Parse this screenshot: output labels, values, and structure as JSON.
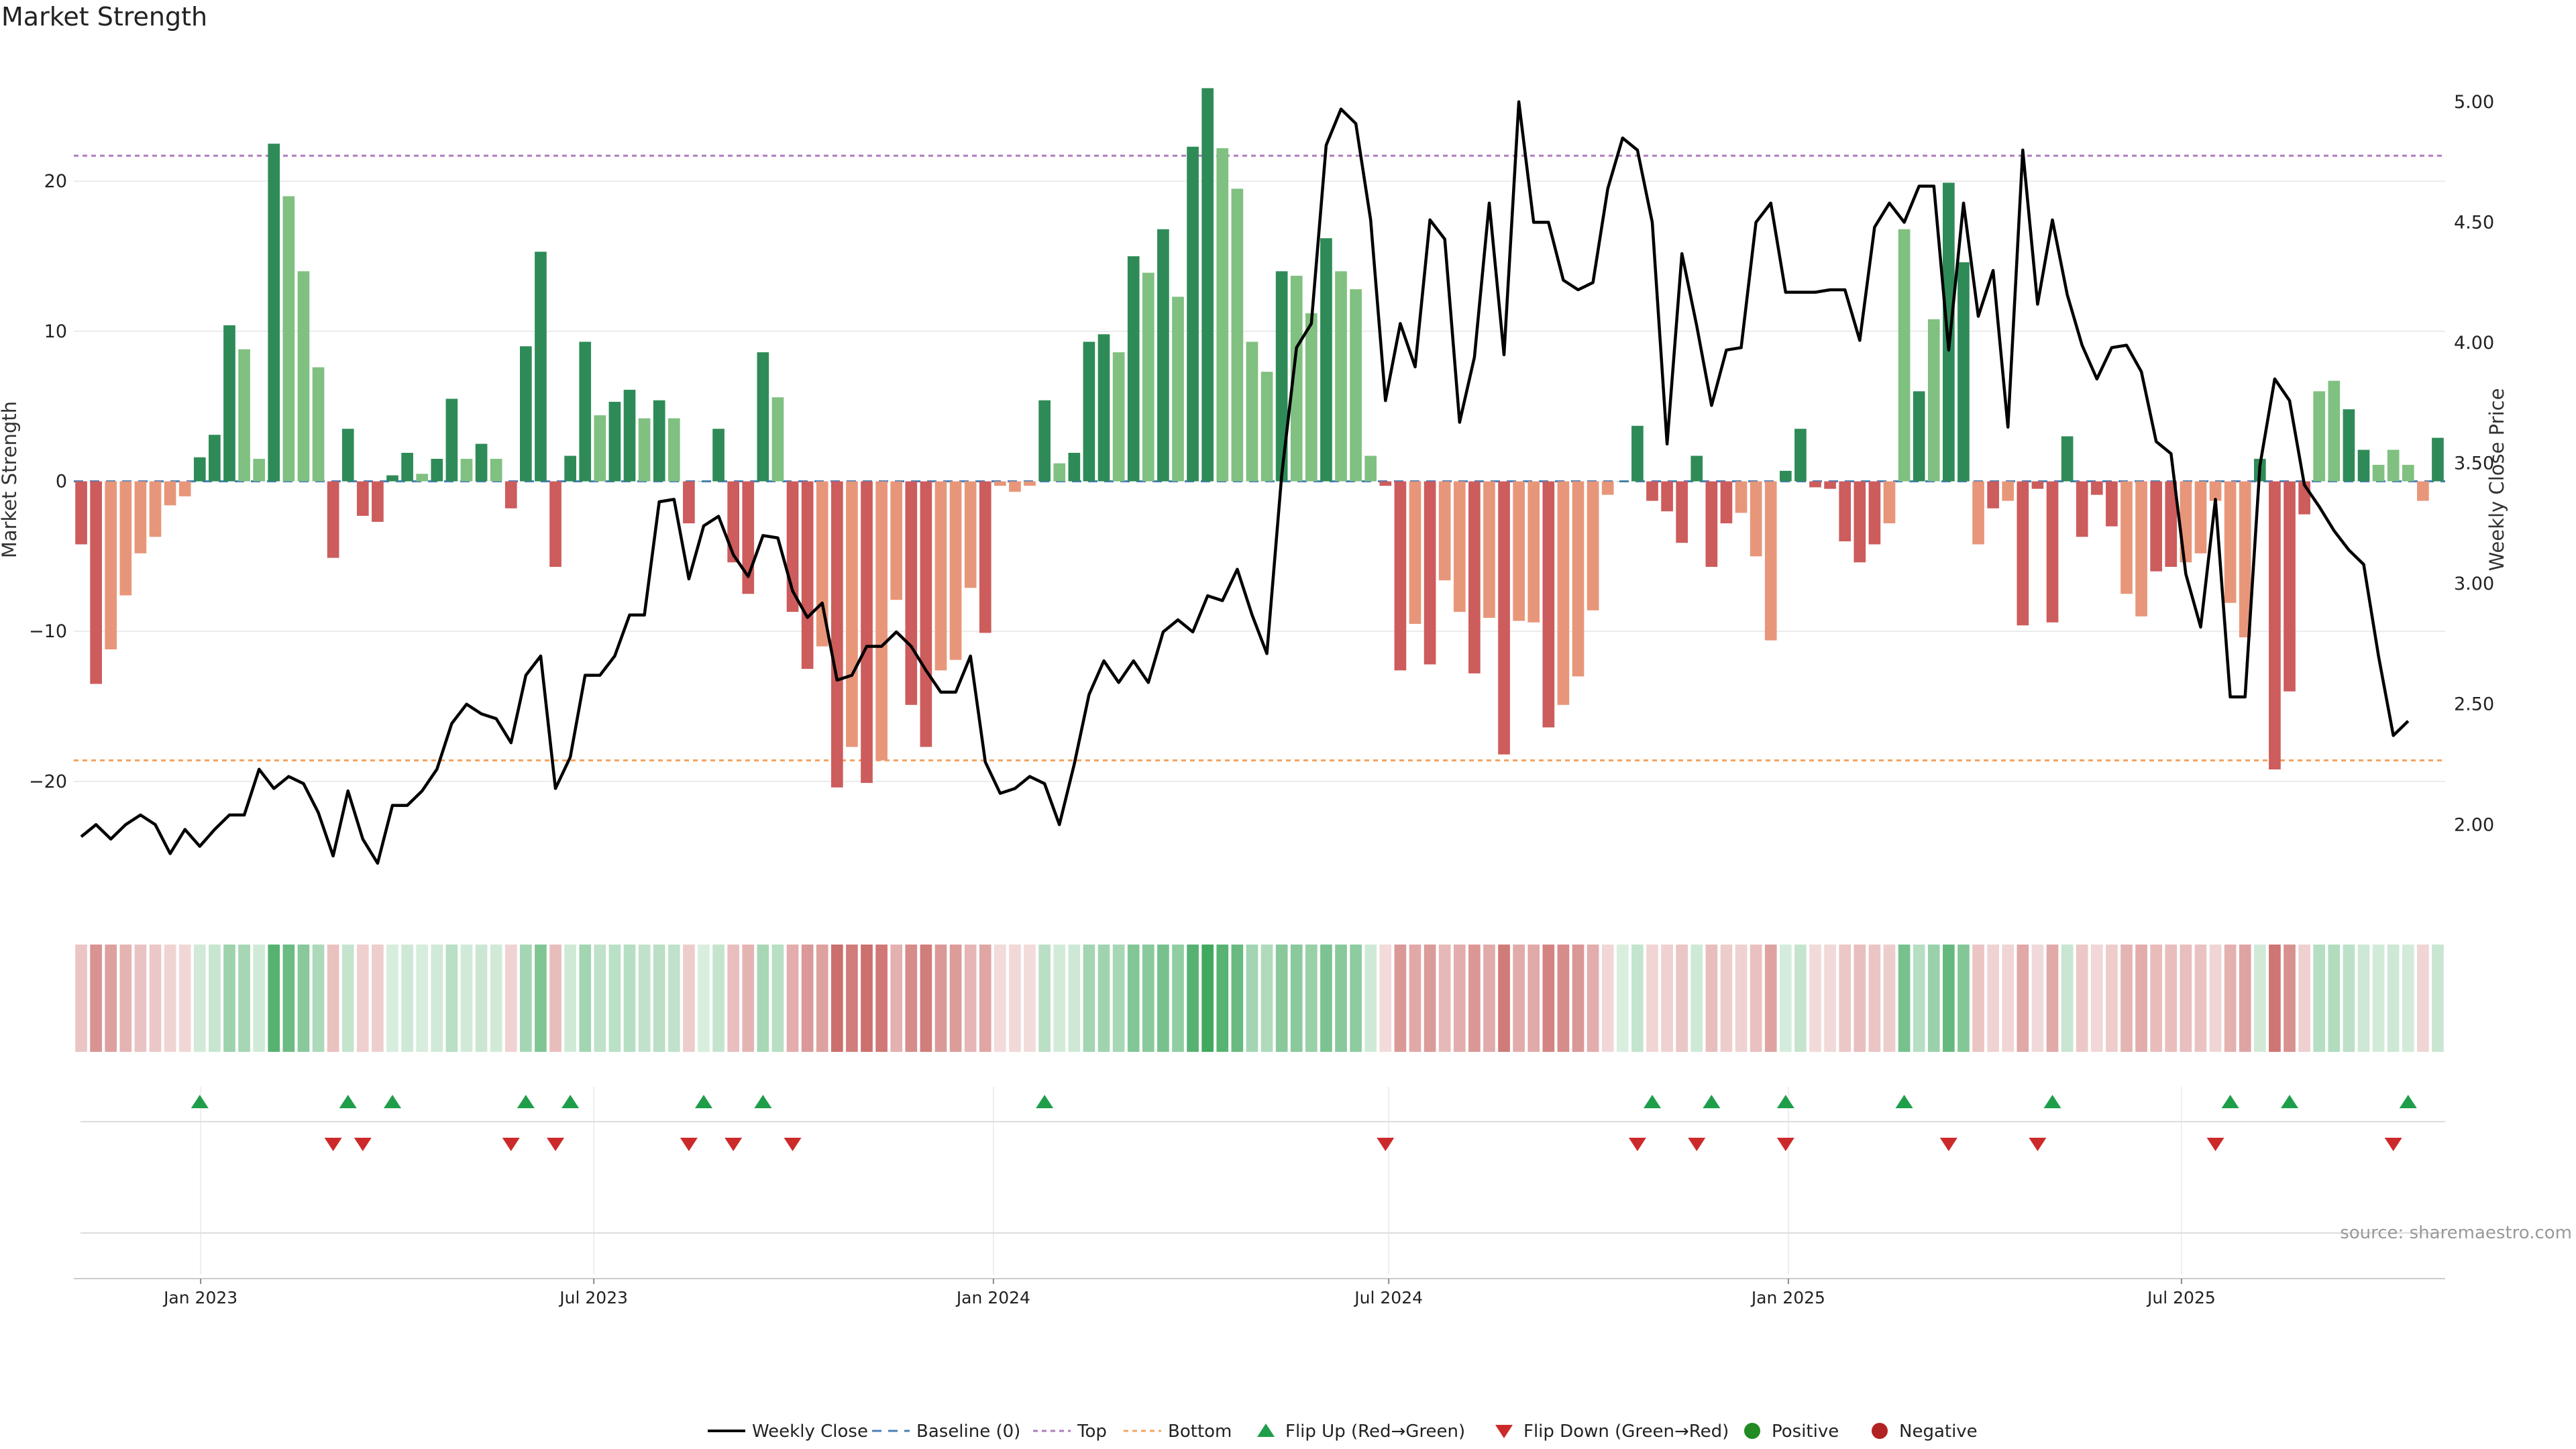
{
  "chart_data": {
    "type": "bar",
    "title": "Market Strength",
    "source": "source: sharemaestro.com",
    "y_left": {
      "label": "Market Strength",
      "lim": [
        -28.5,
        28.5
      ],
      "ticks": [
        -20,
        -10,
        0,
        10,
        20
      ],
      "tick_labels": [
        "−20",
        "−10",
        "0",
        "10",
        "20"
      ]
    },
    "y_right": {
      "label": "Weekly Close Price",
      "lim": [
        1.65,
        5.2
      ],
      "ticks": [
        2.0,
        2.5,
        3.0,
        3.5,
        4.0,
        4.5,
        5.0
      ],
      "tick_labels": [
        "2.00",
        "2.50",
        "3.00",
        "3.50",
        "4.00",
        "4.50",
        "5.00"
      ]
    },
    "x_axis": {
      "start": "2022-11-07",
      "end": "2025-10-27",
      "ticks": [
        "2023-01-01",
        "2023-07-01",
        "2024-01-01",
        "2024-07-01",
        "2025-01-01",
        "2025-07-01"
      ],
      "tick_labels": [
        "Jan 2023",
        "Jul 2023",
        "Jan 2024",
        "Jul 2024",
        "Jan 2025",
        "Jul 2025"
      ]
    },
    "reference_lines": {
      "top": 21.7,
      "bottom": -18.6,
      "baseline": 0
    },
    "colors": {
      "pos_strong": "#2e8b57",
      "pos_light": "#80c080",
      "neg_strong": "#cd5c5c",
      "neg_light": "#e8967a",
      "line": "#000000",
      "top": "#b07ac0",
      "bottom": "#f4a460",
      "baseline": "#4a7fb5",
      "flip_up": "#1f9e4a",
      "flip_down": "#cc2a2a",
      "positive": "#228b22",
      "negative": "#b22222"
    },
    "strength": [
      -4.2,
      -13.5,
      -11.2,
      -7.6,
      -4.8,
      -3.7,
      -1.6,
      -1.0,
      1.6,
      3.1,
      10.4,
      8.8,
      1.5,
      22.5,
      19.0,
      14.0,
      7.6,
      -5.1,
      3.5,
      -2.3,
      -2.7,
      0.4,
      1.9,
      0.5,
      1.5,
      5.5,
      1.5,
      2.5,
      1.5,
      -1.8,
      9.0,
      15.3,
      -5.7,
      1.7,
      9.3,
      4.4,
      5.3,
      6.1,
      4.2,
      5.4,
      4.2,
      -2.8,
      0.0,
      3.5,
      -5.4,
      -7.5,
      8.6,
      5.6,
      -8.7,
      -12.5,
      -11.0,
      -20.4,
      -17.7,
      -20.1,
      -18.6,
      -7.9,
      -14.9,
      -17.7,
      -12.6,
      -11.9,
      -7.1,
      -10.1,
      -0.3,
      -0.7,
      -0.3,
      5.4,
      1.2,
      1.9,
      9.3,
      9.8,
      8.6,
      15.0,
      13.9,
      16.8,
      12.3,
      22.3,
      26.2,
      22.2,
      19.5,
      9.3,
      7.3,
      14.0,
      13.7,
      11.2,
      16.2,
      14.0,
      12.8,
      1.7,
      -0.3,
      -12.6,
      -9.5,
      -12.2,
      -6.6,
      -8.7,
      -12.8,
      -9.1,
      -18.2,
      -9.3,
      -9.4,
      -16.4,
      -14.9,
      -13.0,
      -8.6,
      -0.9,
      0.0,
      3.7,
      -1.3,
      -2.0,
      -4.1,
      1.7,
      -5.7,
      -2.8,
      -2.1,
      -5.0,
      -10.6,
      0.7,
      3.5,
      -0.4,
      -0.5,
      -4.0,
      -5.4,
      -4.2,
      -2.8,
      16.8,
      6.0,
      10.8,
      19.9,
      14.6,
      -4.2,
      -1.8,
      -1.3,
      -9.6,
      -0.5,
      -9.4,
      3.0,
      -3.7,
      -0.9,
      -3.0,
      -7.5,
      -9.0,
      -6.0,
      -5.7,
      -5.4,
      -4.8,
      -1.3,
      -8.1,
      -10.4,
      1.5,
      -19.2,
      -14.0,
      -2.2,
      6.0,
      6.7,
      4.8,
      2.1,
      1.1,
      2.1,
      1.1,
      -1.3,
      2.9
    ],
    "shade": [
      1,
      1,
      0,
      0,
      0,
      0,
      0,
      0,
      1,
      1,
      1,
      0,
      0,
      1,
      0,
      0,
      0,
      1,
      1,
      1,
      1,
      1,
      1,
      0,
      1,
      1,
      0,
      1,
      0,
      1,
      1,
      1,
      1,
      1,
      1,
      0,
      1,
      1,
      0,
      1,
      0,
      1,
      1,
      1,
      1,
      1,
      1,
      0,
      1,
      1,
      0,
      1,
      0,
      1,
      0,
      0,
      1,
      1,
      0,
      0,
      0,
      1,
      0,
      0,
      0,
      1,
      0,
      1,
      1,
      1,
      0,
      1,
      0,
      1,
      0,
      1,
      1,
      0,
      0,
      0,
      0,
      1,
      0,
      0,
      1,
      0,
      0,
      0,
      1,
      1,
      0,
      1,
      0,
      0,
      1,
      0,
      1,
      0,
      0,
      1,
      0,
      0,
      0,
      0,
      1,
      1,
      1,
      1,
      1,
      1,
      1,
      1,
      0,
      0,
      0,
      1,
      1,
      1,
      1,
      1,
      1,
      1,
      0,
      0,
      1,
      0,
      1,
      1,
      0,
      1,
      0,
      1,
      1,
      1,
      1,
      1,
      1,
      1,
      0,
      0,
      1,
      1,
      0,
      0,
      0,
      0,
      0,
      1,
      1,
      1,
      1,
      0,
      0,
      1,
      1,
      0,
      0,
      0,
      0,
      1,
      1,
      1
    ],
    "close": [
      1.95,
      2.0,
      1.94,
      2.0,
      2.04,
      2.0,
      1.88,
      1.98,
      1.91,
      1.98,
      2.04,
      2.04,
      2.23,
      2.15,
      2.2,
      2.17,
      2.05,
      1.87,
      2.14,
      1.94,
      1.84,
      2.08,
      2.08,
      2.14,
      2.23,
      2.42,
      2.5,
      2.46,
      2.44,
      2.34,
      2.62,
      2.7,
      2.15,
      2.28,
      2.62,
      2.62,
      2.7,
      2.87,
      2.87,
      3.34,
      3.35,
      3.02,
      3.24,
      3.28,
      3.12,
      3.03,
      3.2,
      3.19,
      2.97,
      2.86,
      2.92,
      2.6,
      2.62,
      2.74,
      2.74,
      2.8,
      2.74,
      2.64,
      2.55,
      2.55,
      2.7,
      2.26,
      2.13,
      2.15,
      2.2,
      2.17,
      2.0,
      2.25,
      2.54,
      2.68,
      2.59,
      2.68,
      2.59,
      2.8,
      2.85,
      2.8,
      2.95,
      2.93,
      3.06,
      2.87,
      2.71,
      3.45,
      3.98,
      4.08,
      4.82,
      4.97,
      4.91,
      4.51,
      3.76,
      4.08,
      3.9,
      4.51,
      4.43,
      3.67,
      3.94,
      4.58,
      3.95,
      5.0,
      4.5,
      4.5,
      4.26,
      4.22,
      4.25,
      4.64,
      4.85,
      4.8,
      4.5,
      3.58,
      4.37,
      4.07,
      3.74,
      3.97,
      3.98,
      4.5,
      4.58,
      4.21,
      4.21,
      4.21,
      4.22,
      4.22,
      4.01,
      4.48,
      4.58,
      4.5,
      4.65,
      4.65,
      3.97,
      4.58,
      4.11,
      4.3,
      3.65,
      4.8,
      4.16,
      4.51,
      4.2,
      3.99,
      3.85,
      3.98,
      3.99,
      3.88,
      3.59,
      3.54,
      3.04,
      2.82,
      3.35,
      2.53,
      2.53,
      3.49,
      3.85,
      3.76,
      3.41,
      3.32,
      3.22,
      3.14,
      3.08,
      2.7,
      2.37,
      2.43
    ],
    "flip_up": [
      8,
      18,
      21,
      30,
      33,
      42,
      46,
      65,
      106,
      110,
      115,
      123,
      133,
      145,
      149,
      157
    ],
    "flip_down": [
      17,
      19,
      29,
      32,
      41,
      44,
      48,
      88,
      105,
      109,
      115,
      126,
      132,
      144,
      156
    ],
    "legend": [
      "Weekly Close",
      "Baseline (0)",
      "Top",
      "Bottom",
      "Flip Up (Red→Green)",
      "Flip Down (Green→Red)",
      "Positive",
      "Negative"
    ]
  }
}
